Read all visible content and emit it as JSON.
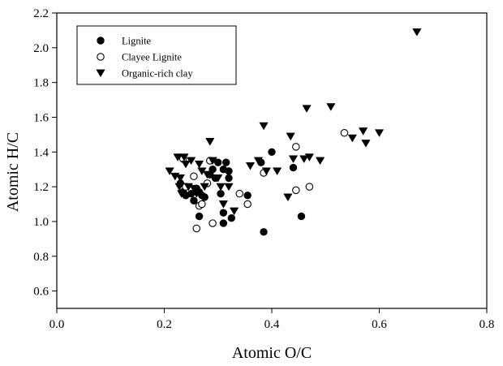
{
  "chart_data": {
    "type": "scatter",
    "xlabel": "Atomic O/C",
    "ylabel": "Atomic H/C",
    "xlim": [
      0.0,
      0.8
    ],
    "ylim": [
      0.5,
      2.2
    ],
    "xticks": [
      "0.0",
      "0.2",
      "0.4",
      "0.6",
      "0.8"
    ],
    "yticks": [
      "0.6",
      "0.8",
      "1.0",
      "1.2",
      "1.4",
      "1.6",
      "1.8",
      "2.0",
      "2.2"
    ],
    "grid": false,
    "legend_position": "top-left",
    "series": [
      {
        "name": "Lignite",
        "marker": "filled-circle",
        "color": "#000000",
        "points": [
          [
            0.23,
            1.22
          ],
          [
            0.235,
            1.17
          ],
          [
            0.24,
            1.15
          ],
          [
            0.25,
            1.16
          ],
          [
            0.255,
            1.12
          ],
          [
            0.26,
            1.19
          ],
          [
            0.265,
            1.17
          ],
          [
            0.27,
            1.15
          ],
          [
            0.275,
            1.14
          ],
          [
            0.285,
            1.27
          ],
          [
            0.29,
            1.3
          ],
          [
            0.295,
            1.25
          ],
          [
            0.3,
            1.34
          ],
          [
            0.31,
            1.3
          ],
          [
            0.315,
            1.34
          ],
          [
            0.32,
            1.29
          ],
          [
            0.32,
            1.25
          ],
          [
            0.305,
            1.16
          ],
          [
            0.31,
            1.05
          ],
          [
            0.325,
            1.02
          ],
          [
            0.31,
            0.99
          ],
          [
            0.265,
            1.03
          ],
          [
            0.355,
            1.15
          ],
          [
            0.38,
            1.34
          ],
          [
            0.4,
            1.4
          ],
          [
            0.44,
            1.31
          ],
          [
            0.455,
            1.03
          ],
          [
            0.385,
            0.94
          ]
        ]
      },
      {
        "name": "Clayee Lignite",
        "marker": "open-circle",
        "color": "#000000",
        "points": [
          [
            0.235,
            1.36
          ],
          [
            0.24,
            1.2
          ],
          [
            0.255,
            1.26
          ],
          [
            0.265,
            1.09
          ],
          [
            0.27,
            1.1
          ],
          [
            0.28,
            1.22
          ],
          [
            0.285,
            1.35
          ],
          [
            0.26,
            0.96
          ],
          [
            0.29,
            0.99
          ],
          [
            0.34,
            1.16
          ],
          [
            0.355,
            1.1
          ],
          [
            0.385,
            1.28
          ],
          [
            0.445,
            1.43
          ],
          [
            0.445,
            1.18
          ],
          [
            0.47,
            1.2
          ],
          [
            0.535,
            1.51
          ]
        ]
      },
      {
        "name": "Organic-rich clay",
        "marker": "filled-triangle-down",
        "color": "#000000",
        "points": [
          [
            0.21,
            1.29
          ],
          [
            0.22,
            1.26
          ],
          [
            0.225,
            1.37
          ],
          [
            0.228,
            1.2
          ],
          [
            0.23,
            1.25
          ],
          [
            0.232,
            1.16
          ],
          [
            0.237,
            1.37
          ],
          [
            0.24,
            1.33
          ],
          [
            0.245,
            1.2
          ],
          [
            0.25,
            1.35
          ],
          [
            0.255,
            1.19
          ],
          [
            0.26,
            1.16
          ],
          [
            0.265,
            1.33
          ],
          [
            0.27,
            1.29
          ],
          [
            0.275,
            1.2
          ],
          [
            0.28,
            1.27
          ],
          [
            0.285,
            1.46
          ],
          [
            0.29,
            1.35
          ],
          [
            0.3,
            1.25
          ],
          [
            0.305,
            1.2
          ],
          [
            0.31,
            1.1
          ],
          [
            0.32,
            1.2
          ],
          [
            0.33,
            1.06
          ],
          [
            0.36,
            1.32
          ],
          [
            0.375,
            1.35
          ],
          [
            0.385,
            1.55
          ],
          [
            0.39,
            1.29
          ],
          [
            0.41,
            1.29
          ],
          [
            0.43,
            1.14
          ],
          [
            0.435,
            1.49
          ],
          [
            0.44,
            1.36
          ],
          [
            0.46,
            1.36
          ],
          [
            0.465,
            1.65
          ],
          [
            0.47,
            1.37
          ],
          [
            0.49,
            1.35
          ],
          [
            0.51,
            1.66
          ],
          [
            0.55,
            1.48
          ],
          [
            0.57,
            1.52
          ],
          [
            0.575,
            1.45
          ],
          [
            0.6,
            1.51
          ],
          [
            0.67,
            2.09
          ]
        ]
      }
    ]
  }
}
